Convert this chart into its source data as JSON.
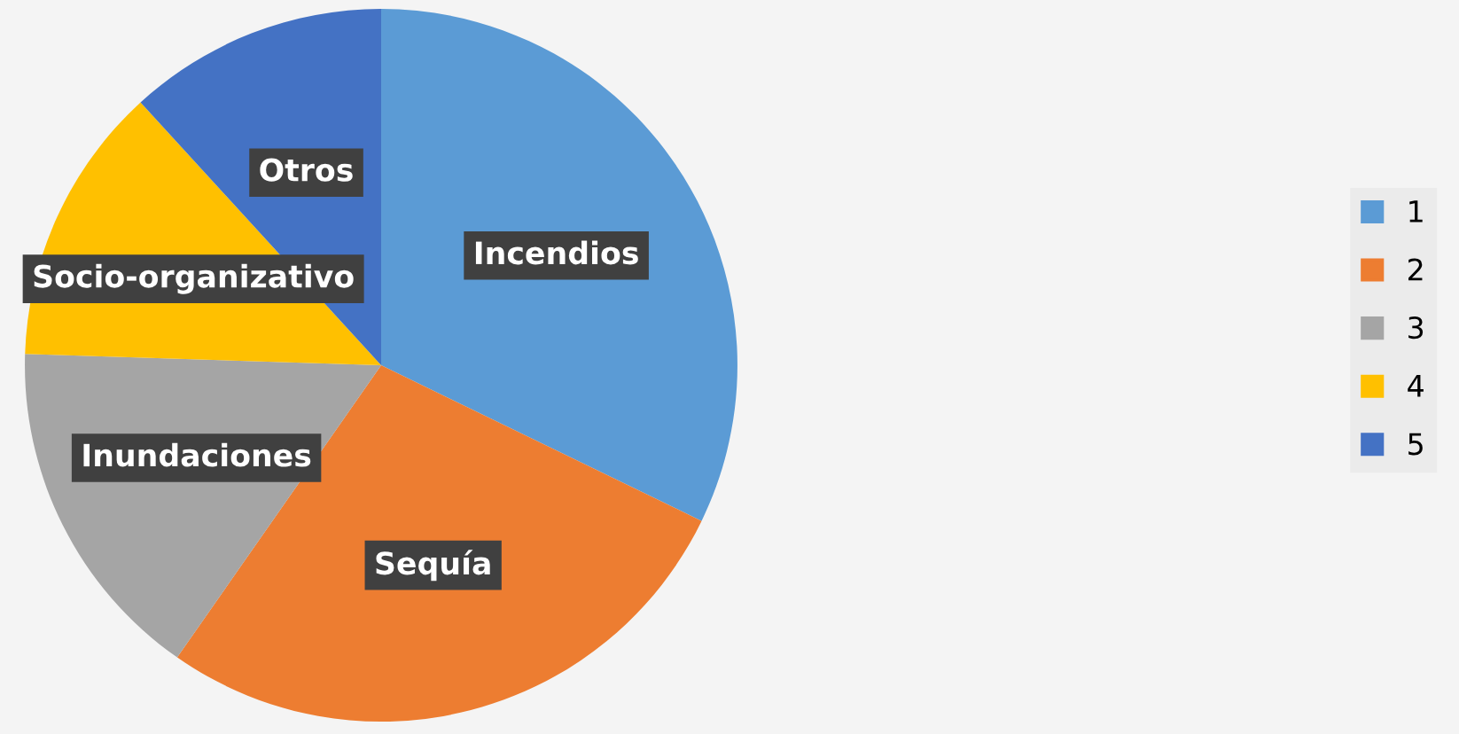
{
  "chart_data": {
    "type": "pie",
    "categories": [
      "1",
      "2",
      "3",
      "4",
      "5"
    ],
    "values": [
      32.2,
      27.5,
      15.8,
      12.7,
      11.8
    ],
    "colors": [
      "#5b9bd5",
      "#ed7d31",
      "#a5a5a5",
      "#ffc000",
      "#4472c4"
    ],
    "value_labels": [
      "Incendios",
      "Sequía",
      "Inundaciones",
      "Socio-organizativo",
      "Otros"
    ],
    "legend": "right"
  }
}
